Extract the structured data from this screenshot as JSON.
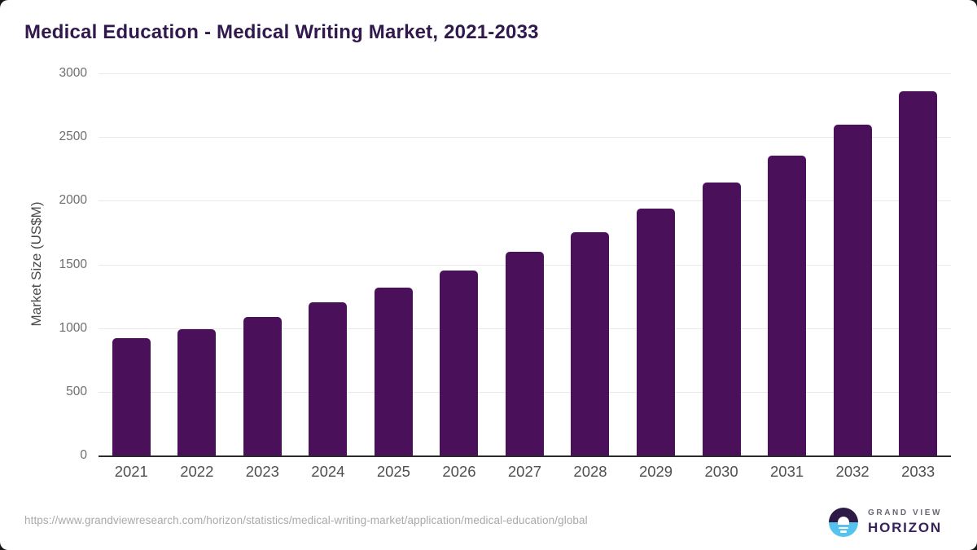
{
  "page": {
    "title": "Medical Education - Medical Writing Market, 2021-2033"
  },
  "chart_data": {
    "type": "bar",
    "title": "Medical Education - Medical Writing Market, 2021-2033",
    "categories": [
      "2021",
      "2022",
      "2023",
      "2024",
      "2025",
      "2026",
      "2027",
      "2028",
      "2029",
      "2030",
      "2031",
      "2032",
      "2033"
    ],
    "values": [
      920,
      990,
      1090,
      1200,
      1315,
      1450,
      1600,
      1755,
      1940,
      2140,
      2355,
      2595,
      2860
    ],
    "xlabel": "",
    "ylabel": "Market Size (US$M)",
    "ylim": [
      0,
      3000
    ],
    "yticks": [
      0,
      500,
      1000,
      1500,
      2000,
      2500,
      3000
    ],
    "grid": true,
    "legend": false,
    "bar_color": "#4A1059"
  },
  "footer": {
    "source_url": "https://www.grandviewresearch.com/horizon/statistics/medical-writing-market/application/medical-education/global",
    "logo": {
      "name1": "GRAND VIEW",
      "name2": "HORIZON",
      "circle_top_color": "#2E1A47",
      "circle_bottom_color": "#55C3EE"
    }
  },
  "colors": {
    "title_text": "#31184D",
    "bar": "#4A1059",
    "axis_line": "#2B2B2B",
    "gridline": "#E9E9E9",
    "y_tick_label": "#6E6E6E",
    "x_tick_label": "#4F4F4F",
    "axis_title": "#4A4A4A",
    "url_text": "#A9A9A9"
  }
}
